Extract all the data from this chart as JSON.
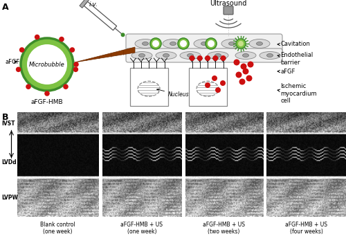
{
  "panel_A_label": "A",
  "panel_B_label": "B",
  "title_ultrasound": "Ultrasound",
  "label_iv": "i.v.",
  "label_microbubble": "Microbubble",
  "label_afgf_hmb": "aFGF-HMB",
  "label_afgf": "aFGF",
  "label_cavitation": "Cavitation",
  "label_endothelial": "Endothelial\nbarrier",
  "label_afgf2": "aFGF",
  "label_ischemic": "Ischemic\nmyocardium\ncell",
  "label_nucleus": "Nucleus",
  "label_ivst": "IVST",
  "label_lvdd": "LVDd",
  "label_lvpw": "LVPW",
  "echocardiography_labels": [
    "Blank control\n(one week)",
    "aFGF-HMB + US\n(one week)",
    "aFGF-HMB + US\n(two weeks)",
    "aFGF-HMB + US\n(four weeks)"
  ],
  "bg_color": "#ffffff",
  "figure_width": 5.0,
  "figure_height": 3.48,
  "green_dark": "#3d8c2a",
  "green_light": "#7dc242",
  "red_dot": "#cc1010",
  "brown_funnel": "#8B4000"
}
